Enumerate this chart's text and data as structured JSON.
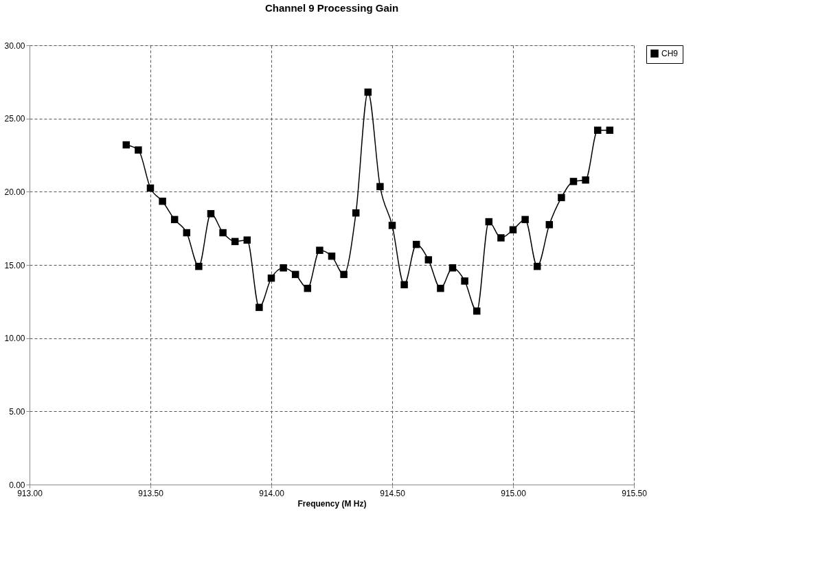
{
  "chart_data": {
    "type": "line",
    "title": "Channel 9 Processing Gain",
    "xlabel": "Frequency (M Hz)",
    "x": [
      913.4,
      913.45,
      913.5,
      913.55,
      913.6,
      913.65,
      913.7,
      913.75,
      913.8,
      913.85,
      913.9,
      913.95,
      914.0,
      914.05,
      914.1,
      914.15,
      914.2,
      914.25,
      914.3,
      914.35,
      914.4,
      914.45,
      914.5,
      914.55,
      914.6,
      914.65,
      914.7,
      914.75,
      914.8,
      914.85,
      914.9,
      914.95,
      915.0,
      915.05,
      915.1,
      915.15,
      915.2,
      915.25,
      915.3,
      915.35,
      915.4
    ],
    "series": [
      {
        "name": "CH9",
        "color": "#000000",
        "values": [
          23.2,
          22.85,
          20.25,
          19.35,
          18.1,
          17.2,
          14.9,
          18.5,
          17.2,
          16.6,
          16.7,
          12.1,
          14.1,
          14.8,
          14.35,
          13.4,
          16.0,
          15.6,
          14.35,
          18.55,
          26.8,
          20.35,
          17.7,
          13.65,
          16.4,
          15.35,
          13.4,
          14.8,
          13.9,
          11.85,
          17.95,
          16.85,
          17.4,
          18.1,
          14.9,
          17.75,
          19.6,
          20.7,
          20.8,
          24.2,
          24.2
        ]
      }
    ],
    "xlim": [
      913.0,
      915.5
    ],
    "xticks": [
      {
        "value": 913.0,
        "label": "913.00"
      },
      {
        "value": 913.5,
        "label": "913.50"
      },
      {
        "value": 914.0,
        "label": "914.00"
      },
      {
        "value": 914.5,
        "label": "914.50"
      },
      {
        "value": 915.0,
        "label": "915.00"
      },
      {
        "value": 915.5,
        "label": "915.50"
      }
    ],
    "ylim": [
      0,
      30
    ],
    "yticks": [
      {
        "value": 0,
        "label": "0.00"
      },
      {
        "value": 5,
        "label": "5.00"
      },
      {
        "value": 10,
        "label": "10.00"
      },
      {
        "value": 15,
        "label": "15.00"
      },
      {
        "value": 20,
        "label": "20.00"
      },
      {
        "value": 25,
        "label": "25.00"
      },
      {
        "value": 30,
        "label": "30.00"
      }
    ],
    "grid": true,
    "legend": "right",
    "marker": "square",
    "line_style": "solid"
  }
}
